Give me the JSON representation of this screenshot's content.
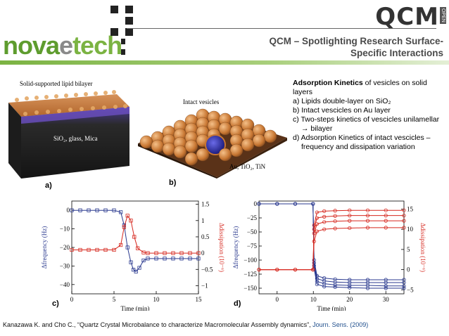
{
  "header": {
    "brand_parts": [
      "nova",
      "e",
      "tech"
    ],
    "qcm_logo": "QCM",
    "qcm_logo_tag": "OPEN",
    "title": "QCM – Spotlighting Research Surface-Specific  Interactions",
    "brand_color": "#7bb342"
  },
  "figures": {
    "a": {
      "label": "a)",
      "caption": "Solid-supported lipid bilayer",
      "substrate_label": "SiO₂, glass, Mica"
    },
    "b": {
      "label": "b)",
      "caption": "Intact vesicles",
      "substrate_label": "Au, TiO₂, TiN"
    },
    "c": {
      "label": "c)"
    },
    "d": {
      "label": "d)"
    }
  },
  "bullets": {
    "intro_bold": "Adsorption Kinetics",
    "intro_rest": "  of vesicles on solid layers",
    "items": [
      "a)  Lipids double-layer on SiO₂",
      "b)  Intact vescicles on Au layer",
      "c)  Two-steps kinetics of vescicles unilamellar → bilayer",
      "d)  Adsorption Kinetics of intact vescicles – frequency and dissipation variation"
    ]
  },
  "reference": {
    "text": "Kanazawa K. and Cho C., “Quartz Crystal Microbalance to characterize Macromolecular Assembly dynamics”, ",
    "journal": "Journ. Sens. (2009)"
  },
  "chart_data": [
    {
      "type": "line",
      "xlabel": "Time (min)",
      "ylabel_left": "Δfrequency (Hz)",
      "ylabel_right": "Δdissipation (10⁻⁶)",
      "xlim": [
        0,
        15
      ],
      "ylim_left": [
        -45,
        5
      ],
      "ylim_right": [
        -1.25,
        1.6
      ],
      "xticks": [
        0,
        5,
        10,
        15
      ],
      "yticks_left": [
        0,
        -10,
        -20,
        -30,
        -40
      ],
      "yticks_right": [
        1.5,
        1,
        0.5,
        0,
        -0.5,
        -1
      ],
      "series": [
        {
          "axis": "left",
          "color": "#2b3a8f",
          "marker": "square",
          "x": [
            0,
            1,
            2,
            3,
            4,
            5,
            5.8,
            6.2,
            6.6,
            7.0,
            7.3,
            7.6,
            8.0,
            8.5,
            9,
            10,
            11,
            12,
            13,
            14,
            15
          ],
          "values": [
            0,
            0,
            0,
            0,
            0,
            0,
            -1,
            -8,
            -20,
            -28,
            -32,
            -33,
            -31,
            -27,
            -26,
            -26,
            -26,
            -26,
            -26,
            -26,
            -26
          ]
        },
        {
          "axis": "right",
          "color": "#d6281f",
          "marker": "square",
          "x": [
            0,
            1,
            2,
            3,
            4,
            5,
            5.8,
            6.2,
            6.6,
            7.0,
            7.4,
            7.8,
            8.5,
            9,
            10,
            11,
            12,
            13,
            14,
            15
          ],
          "values": [
            0.1,
            0.1,
            0.1,
            0.1,
            0.1,
            0.1,
            0.25,
            0.8,
            1.15,
            1.0,
            0.5,
            0.15,
            0.02,
            0.0,
            0.0,
            0.0,
            0.0,
            0.0,
            0.0,
            0.0
          ]
        }
      ]
    },
    {
      "type": "line",
      "xlabel": "Time (min)",
      "ylabel_left": "Δfrequency (Hz)",
      "ylabel_right": "Δdissipation (10⁻⁶)",
      "xlim": [
        -5,
        35
      ],
      "ylim_left": [
        -160,
        5
      ],
      "ylim_right": [
        -6,
        17
      ],
      "xticks": [
        0,
        10,
        20,
        30
      ],
      "yticks_left": [
        0,
        -25,
        -50,
        -75,
        -100,
        -125,
        -150
      ],
      "yticks_right": [
        15,
        10,
        5,
        0,
        -5
      ],
      "series": [
        {
          "axis": "left",
          "color": "#2b3a8f",
          "marker": "circle",
          "x": [
            -5,
            0,
            5,
            9.9,
            10.2,
            11,
            13,
            16,
            20,
            25,
            30,
            35
          ],
          "values": [
            0,
            0,
            0,
            0,
            -100,
            -128,
            -132,
            -134,
            -135,
            -135,
            -135,
            -135
          ]
        },
        {
          "axis": "left",
          "color": "#2b3a8f",
          "marker": "circle",
          "x": [
            -5,
            0,
            5,
            9.9,
            10.2,
            11,
            13,
            16,
            20,
            25,
            30,
            35
          ],
          "values": [
            0,
            0,
            0,
            0,
            -105,
            -133,
            -137,
            -139,
            -140,
            -140,
            -140,
            -140
          ]
        },
        {
          "axis": "left",
          "color": "#2b3a8f",
          "marker": "circle",
          "x": [
            -5,
            0,
            5,
            9.9,
            10.2,
            11,
            13,
            16,
            20,
            25,
            30,
            35
          ],
          "values": [
            0,
            0,
            0,
            0,
            -110,
            -138,
            -142,
            -144,
            -145,
            -145,
            -146,
            -146
          ]
        },
        {
          "axis": "left",
          "color": "#2b3a8f",
          "marker": "circle",
          "x": [
            -5,
            0,
            5,
            9.9,
            10.2,
            11,
            13,
            16,
            20,
            25,
            30,
            35
          ],
          "values": [
            0,
            0,
            0,
            0,
            -115,
            -143,
            -147,
            -148,
            -149,
            -150,
            -150,
            -150
          ]
        },
        {
          "axis": "right",
          "color": "#d6281f",
          "marker": "circle",
          "x": [
            -5,
            0,
            5,
            9.9,
            10.2,
            11,
            13,
            16,
            20,
            25,
            30,
            35
          ],
          "values": [
            0,
            0,
            0,
            0,
            11,
            14.2,
            14.5,
            14.6,
            14.7,
            14.7,
            14.7,
            14.7
          ]
        },
        {
          "axis": "right",
          "color": "#d6281f",
          "marker": "circle",
          "x": [
            -5,
            0,
            5,
            9.9,
            10.2,
            11,
            13,
            16,
            20,
            25,
            30,
            35
          ],
          "values": [
            0,
            0,
            0,
            0,
            10,
            12.8,
            13.1,
            13.3,
            13.4,
            13.4,
            13.4,
            13.4
          ]
        },
        {
          "axis": "right",
          "color": "#d6281f",
          "marker": "circle",
          "x": [
            -5,
            0,
            5,
            9.9,
            10.2,
            11,
            13,
            16,
            20,
            25,
            30,
            35
          ],
          "values": [
            0,
            0,
            0,
            0,
            9,
            11.3,
            11.8,
            12.0,
            12.1,
            12.1,
            12.1,
            12.1
          ]
        },
        {
          "axis": "right",
          "color": "#d6281f",
          "marker": "circle",
          "x": [
            -5,
            0,
            5,
            9.9,
            10.2,
            11,
            13,
            16,
            20,
            25,
            30,
            35
          ],
          "values": [
            0,
            0,
            0,
            0,
            7,
            9.5,
            10.0,
            10.2,
            10.3,
            10.4,
            10.4,
            10.4
          ]
        }
      ]
    }
  ]
}
